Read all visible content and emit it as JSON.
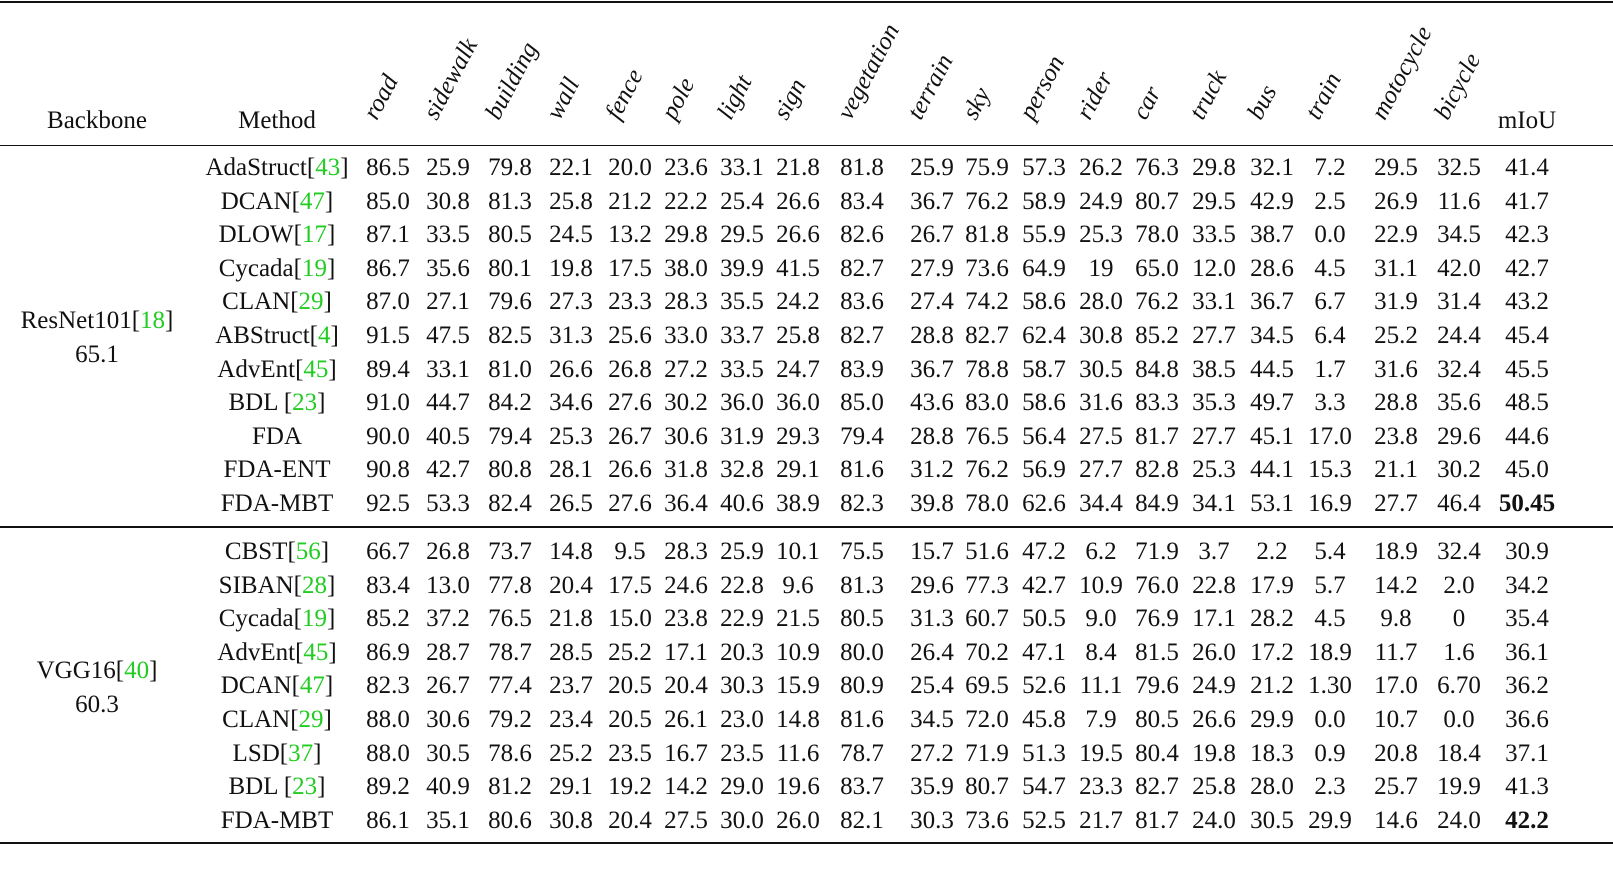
{
  "table": {
    "header": {
      "backbone": "Backbone",
      "method": "Method",
      "classes": [
        "road",
        "sidewalk",
        "building",
        "wall",
        "fence",
        "pole",
        "light",
        "sign",
        "vegetation",
        "terrain",
        "sky",
        "person",
        "rider",
        "car",
        "truck",
        "bus",
        "train",
        "motocycle",
        "bicycle"
      ],
      "miou": "mIoU"
    },
    "colors": {
      "ref": "#22cc22",
      "text": "#111111"
    },
    "groups": [
      {
        "backbone": {
          "name": "ResNet101",
          "ref": "18",
          "score": "65.1"
        },
        "rows": [
          {
            "method": "AdaStruct",
            "ref": "43",
            "values": [
              "86.5",
              "25.9",
              "79.8",
              "22.1",
              "20.0",
              "23.6",
              "33.1",
              "21.8",
              "81.8",
              "25.9",
              "75.9",
              "57.3",
              "26.2",
              "76.3",
              "29.8",
              "32.1",
              "7.2",
              "29.5",
              "32.5"
            ],
            "miou": "41.4",
            "best": false
          },
          {
            "method": "DCAN",
            "ref": "47",
            "values": [
              "85.0",
              "30.8",
              "81.3",
              "25.8",
              "21.2",
              "22.2",
              "25.4",
              "26.6",
              "83.4",
              "36.7",
              "76.2",
              "58.9",
              "24.9",
              "80.7",
              "29.5",
              "42.9",
              "2.5",
              "26.9",
              "11.6"
            ],
            "miou": "41.7",
            "best": false
          },
          {
            "method": "DLOW",
            "ref": "17",
            "values": [
              "87.1",
              "33.5",
              "80.5",
              "24.5",
              "13.2",
              "29.8",
              "29.5",
              "26.6",
              "82.6",
              "26.7",
              "81.8",
              "55.9",
              "25.3",
              "78.0",
              "33.5",
              "38.7",
              "0.0",
              "22.9",
              "34.5"
            ],
            "miou": "42.3",
            "best": false
          },
          {
            "method": "Cycada",
            "ref": "19",
            "values": [
              "86.7",
              "35.6",
              "80.1",
              "19.8",
              "17.5",
              "38.0",
              "39.9",
              "41.5",
              "82.7",
              "27.9",
              "73.6",
              "64.9",
              "19",
              "65.0",
              "12.0",
              "28.6",
              "4.5",
              "31.1",
              "42.0"
            ],
            "miou": "42.7",
            "best": false
          },
          {
            "method": "CLAN",
            "ref": "29",
            "values": [
              "87.0",
              "27.1",
              "79.6",
              "27.3",
              "23.3",
              "28.3",
              "35.5",
              "24.2",
              "83.6",
              "27.4",
              "74.2",
              "58.6",
              "28.0",
              "76.2",
              "33.1",
              "36.7",
              "6.7",
              "31.9",
              "31.4"
            ],
            "miou": "43.2",
            "best": false
          },
          {
            "method": "ABStruct",
            "ref": "4",
            "values": [
              "91.5",
              "47.5",
              "82.5",
              "31.3",
              "25.6",
              "33.0",
              "33.7",
              "25.8",
              "82.7",
              "28.8",
              "82.7",
              "62.4",
              "30.8",
              "85.2",
              "27.7",
              "34.5",
              "6.4",
              "25.2",
              "24.4"
            ],
            "miou": "45.4",
            "best": false
          },
          {
            "method": "AdvEnt",
            "ref": "45",
            "values": [
              "89.4",
              "33.1",
              "81.0",
              "26.6",
              "26.8",
              "27.2",
              "33.5",
              "24.7",
              "83.9",
              "36.7",
              "78.8",
              "58.7",
              "30.5",
              "84.8",
              "38.5",
              "44.5",
              "1.7",
              "31.6",
              "32.4"
            ],
            "miou": "45.5",
            "best": false
          },
          {
            "method": "BDL ",
            "ref": "23",
            "values": [
              "91.0",
              "44.7",
              "84.2",
              "34.6",
              "27.6",
              "30.2",
              "36.0",
              "36.0",
              "85.0",
              "43.6",
              "83.0",
              "58.6",
              "31.6",
              "83.3",
              "35.3",
              "49.7",
              "3.3",
              "28.8",
              "35.6"
            ],
            "miou": "48.5",
            "best": false
          },
          {
            "method": "FDA",
            "ref": "",
            "values": [
              "90.0",
              "40.5",
              "79.4",
              "25.3",
              "26.7",
              "30.6",
              "31.9",
              "29.3",
              "79.4",
              "28.8",
              "76.5",
              "56.4",
              "27.5",
              "81.7",
              "27.7",
              "45.1",
              "17.0",
              "23.8",
              "29.6"
            ],
            "miou": "44.6",
            "best": false
          },
          {
            "method": "FDA-ENT",
            "ref": "",
            "values": [
              "90.8",
              "42.7",
              "80.8",
              "28.1",
              "26.6",
              "31.8",
              "32.8",
              "29.1",
              "81.6",
              "31.2",
              "76.2",
              "56.9",
              "27.7",
              "82.8",
              "25.3",
              "44.1",
              "15.3",
              "21.1",
              "30.2"
            ],
            "miou": "45.0",
            "best": false
          },
          {
            "method": "FDA-MBT",
            "ref": "",
            "values": [
              "92.5",
              "53.3",
              "82.4",
              "26.5",
              "27.6",
              "36.4",
              "40.6",
              "38.9",
              "82.3",
              "39.8",
              "78.0",
              "62.6",
              "34.4",
              "84.9",
              "34.1",
              "53.1",
              "16.9",
              "27.7",
              "46.4"
            ],
            "miou": "50.45",
            "best": true
          }
        ]
      },
      {
        "backbone": {
          "name": "VGG16",
          "ref": "40",
          "score": "60.3"
        },
        "rows": [
          {
            "method": "CBST",
            "ref": "56",
            "values": [
              "66.7",
              "26.8",
              "73.7",
              "14.8",
              "9.5",
              "28.3",
              "25.9",
              "10.1",
              "75.5",
              "15.7",
              "51.6",
              "47.2",
              "6.2",
              "71.9",
              "3.7",
              "2.2",
              "5.4",
              "18.9",
              "32.4"
            ],
            "miou": "30.9",
            "best": false
          },
          {
            "method": "SIBAN",
            "ref": "28",
            "values": [
              "83.4",
              "13.0",
              "77.8",
              "20.4",
              "17.5",
              "24.6",
              "22.8",
              "9.6",
              "81.3",
              "29.6",
              "77.3",
              "42.7",
              "10.9",
              "76.0",
              "22.8",
              "17.9",
              "5.7",
              "14.2",
              "2.0"
            ],
            "miou": "34.2",
            "best": false
          },
          {
            "method": "Cycada",
            "ref": "19",
            "values": [
              "85.2",
              "37.2",
              "76.5",
              "21.8",
              "15.0",
              "23.8",
              "22.9",
              "21.5",
              "80.5",
              "31.3",
              "60.7",
              "50.5",
              "9.0",
              "76.9",
              "17.1",
              "28.2",
              "4.5",
              "9.8",
              "0"
            ],
            "miou": "35.4",
            "best": false
          },
          {
            "method": "AdvEnt",
            "ref": "45",
            "values": [
              "86.9",
              "28.7",
              "78.7",
              "28.5",
              "25.2",
              "17.1",
              "20.3",
              "10.9",
              "80.0",
              "26.4",
              "70.2",
              "47.1",
              "8.4",
              "81.5",
              "26.0",
              "17.2",
              "18.9",
              "11.7",
              "1.6"
            ],
            "miou": "36.1",
            "best": false
          },
          {
            "method": "DCAN",
            "ref": "47",
            "values": [
              "82.3",
              "26.7",
              "77.4",
              "23.7",
              "20.5",
              "20.4",
              "30.3",
              "15.9",
              "80.9",
              "25.4",
              "69.5",
              "52.6",
              "11.1",
              "79.6",
              "24.9",
              "21.2",
              "1.30",
              "17.0",
              "6.70"
            ],
            "miou": "36.2",
            "best": false
          },
          {
            "method": "CLAN",
            "ref": "29",
            "values": [
              "88.0",
              "30.6",
              "79.2",
              "23.4",
              "20.5",
              "26.1",
              "23.0",
              "14.8",
              "81.6",
              "34.5",
              "72.0",
              "45.8",
              "7.9",
              "80.5",
              "26.6",
              "29.9",
              "0.0",
              "10.7",
              "0.0"
            ],
            "miou": "36.6",
            "best": false
          },
          {
            "method": "LSD",
            "ref": "37",
            "values": [
              "88.0",
              "30.5",
              "78.6",
              "25.2",
              "23.5",
              "16.7",
              "23.5",
              "11.6",
              "78.7",
              "27.2",
              "71.9",
              "51.3",
              "19.5",
              "80.4",
              "19.8",
              "18.3",
              "0.9",
              "20.8",
              "18.4"
            ],
            "miou": "37.1",
            "best": false
          },
          {
            "method": "BDL ",
            "ref": "23",
            "values": [
              "89.2",
              "40.9",
              "81.2",
              "29.1",
              "19.2",
              "14.2",
              "29.0",
              "19.6",
              "83.7",
              "35.9",
              "80.7",
              "54.7",
              "23.3",
              "82.7",
              "25.8",
              "28.0",
              "2.3",
              "25.7",
              "19.9"
            ],
            "miou": "41.3",
            "best": false
          },
          {
            "method": "FDA-MBT",
            "ref": "",
            "values": [
              "86.1",
              "35.1",
              "80.6",
              "30.8",
              "20.4",
              "27.5",
              "30.0",
              "26.0",
              "82.1",
              "30.3",
              "73.6",
              "52.5",
              "21.7",
              "81.7",
              "24.0",
              "30.5",
              "29.9",
              "14.6",
              "24.0"
            ],
            "miou": "42.2",
            "best": true
          }
        ]
      }
    ]
  }
}
